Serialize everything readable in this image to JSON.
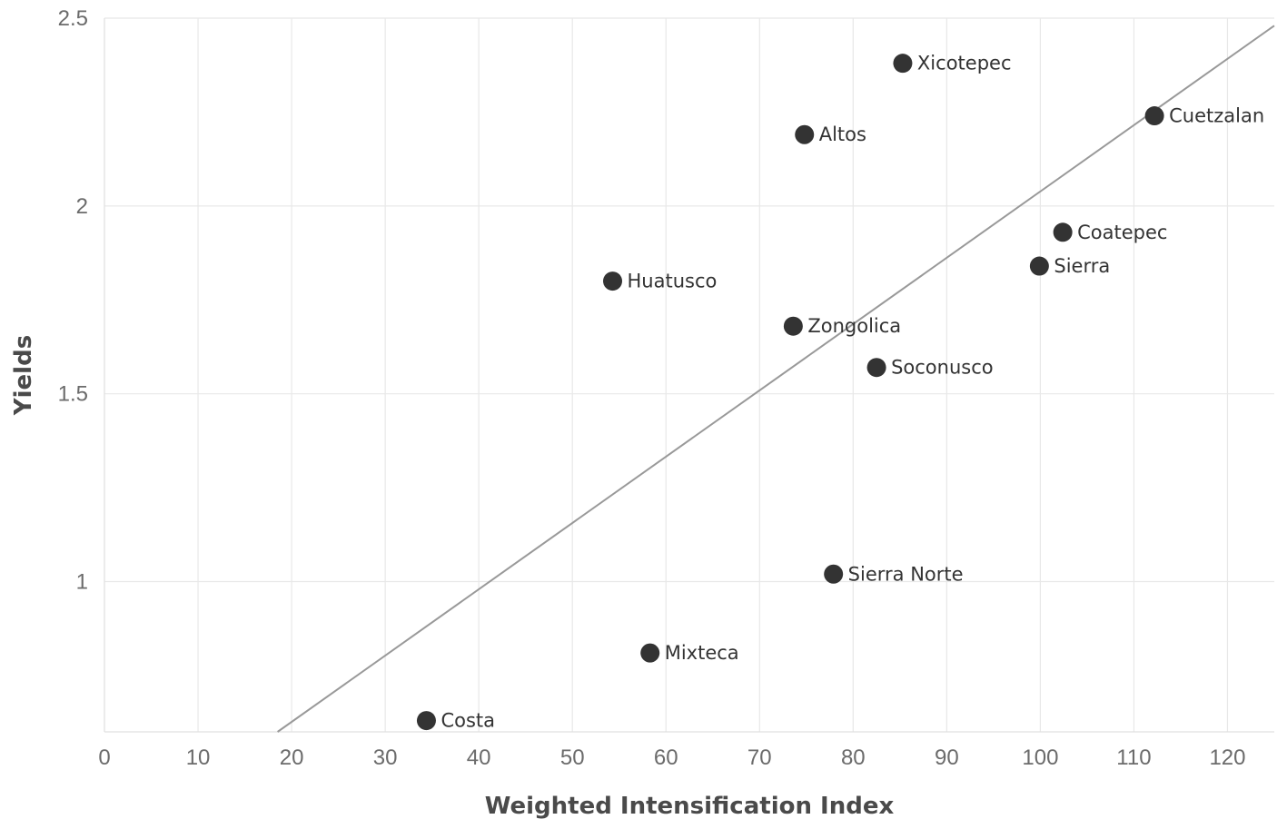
{
  "chart_data": {
    "type": "scatter",
    "xlabel": "Weighted Intensification Index",
    "ylabel": "Yields",
    "xlim": [
      0,
      125
    ],
    "ylim": [
      0.6,
      2.5
    ],
    "xticks": [
      0,
      10,
      20,
      30,
      40,
      50,
      60,
      70,
      80,
      90,
      100,
      110,
      120
    ],
    "yticks": [
      1,
      1.5,
      2,
      2.5
    ],
    "grid": true,
    "points": [
      {
        "label": "Xicotepec",
        "x": 85.3,
        "y": 2.38
      },
      {
        "label": "Cuetzalan",
        "x": 112.2,
        "y": 2.24
      },
      {
        "label": "Altos",
        "x": 74.8,
        "y": 2.19
      },
      {
        "label": "Coatepec",
        "x": 102.4,
        "y": 1.93
      },
      {
        "label": "Sierra",
        "x": 99.9,
        "y": 1.84
      },
      {
        "label": "Huatusco",
        "x": 54.3,
        "y": 1.8
      },
      {
        "label": "Zongolica",
        "x": 73.6,
        "y": 1.68
      },
      {
        "label": "Soconusco",
        "x": 82.5,
        "y": 1.57
      },
      {
        "label": "Sierra Norte",
        "x": 77.9,
        "y": 1.02
      },
      {
        "label": "Mixteca",
        "x": 58.3,
        "y": 0.81
      },
      {
        "label": "Costa",
        "x": 34.4,
        "y": 0.63
      }
    ],
    "trendline": {
      "x": [
        18.5,
        125
      ],
      "y": [
        0.6,
        2.48
      ]
    },
    "colors": {
      "point": "#333333",
      "trendline": "#999999",
      "grid": "#e8e8e8"
    }
  }
}
